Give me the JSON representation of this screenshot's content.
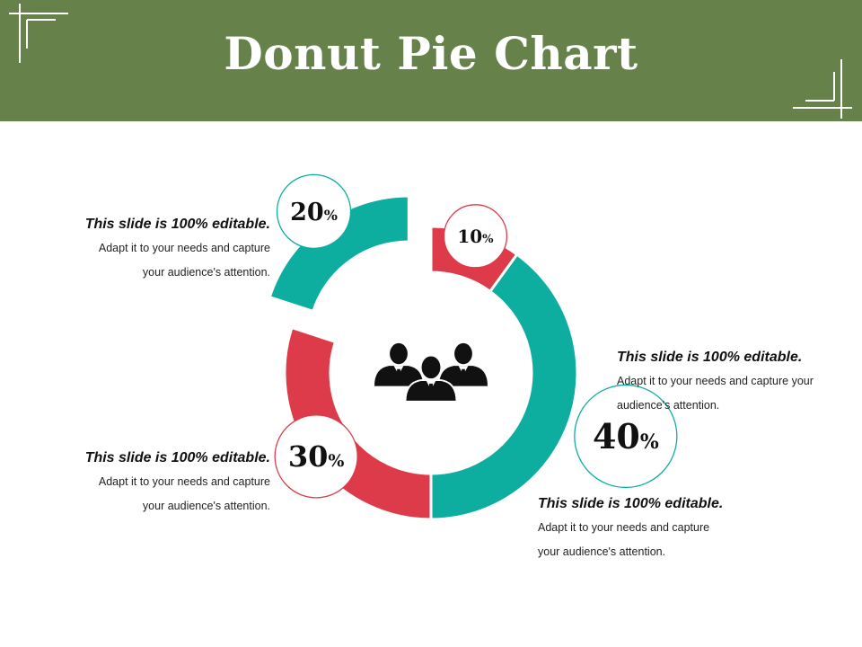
{
  "header": {
    "title": "Donut Pie Chart",
    "background": "#66814a"
  },
  "center_icon": "people-group-icon",
  "chart_data": {
    "type": "pie",
    "variant": "donut",
    "title": "Donut Pie Chart",
    "categories": [
      "10%",
      "40%",
      "30%",
      "20%"
    ],
    "values": [
      10,
      40,
      30,
      20
    ],
    "colors": [
      "#dd3b4a",
      "#0daea0",
      "#dd3b4a",
      "#0daea0"
    ],
    "labels": [
      {
        "value": "10",
        "unit": "%"
      },
      {
        "value": "40",
        "unit": "%"
      },
      {
        "value": "30",
        "unit": "%"
      },
      {
        "value": "20",
        "unit": "%"
      }
    ]
  },
  "text_blocks": [
    {
      "heading": "This slide is 100% editable.",
      "body_line1": "Adapt it to your needs and capture",
      "body_line2": "your audience's attention."
    },
    {
      "heading": "This slide is 100% editable.",
      "body_line1": "Adapt it to your needs and capture your",
      "body_line2": "audience's attention."
    },
    {
      "heading": "This slide is 100% editable.",
      "body_line1": "Adapt it to your needs and capture",
      "body_line2": "your audience's attention."
    },
    {
      "heading": "This slide is 100% editable.",
      "body_line1": "Adapt it to your needs and capture",
      "body_line2": "your audience's attention."
    }
  ]
}
